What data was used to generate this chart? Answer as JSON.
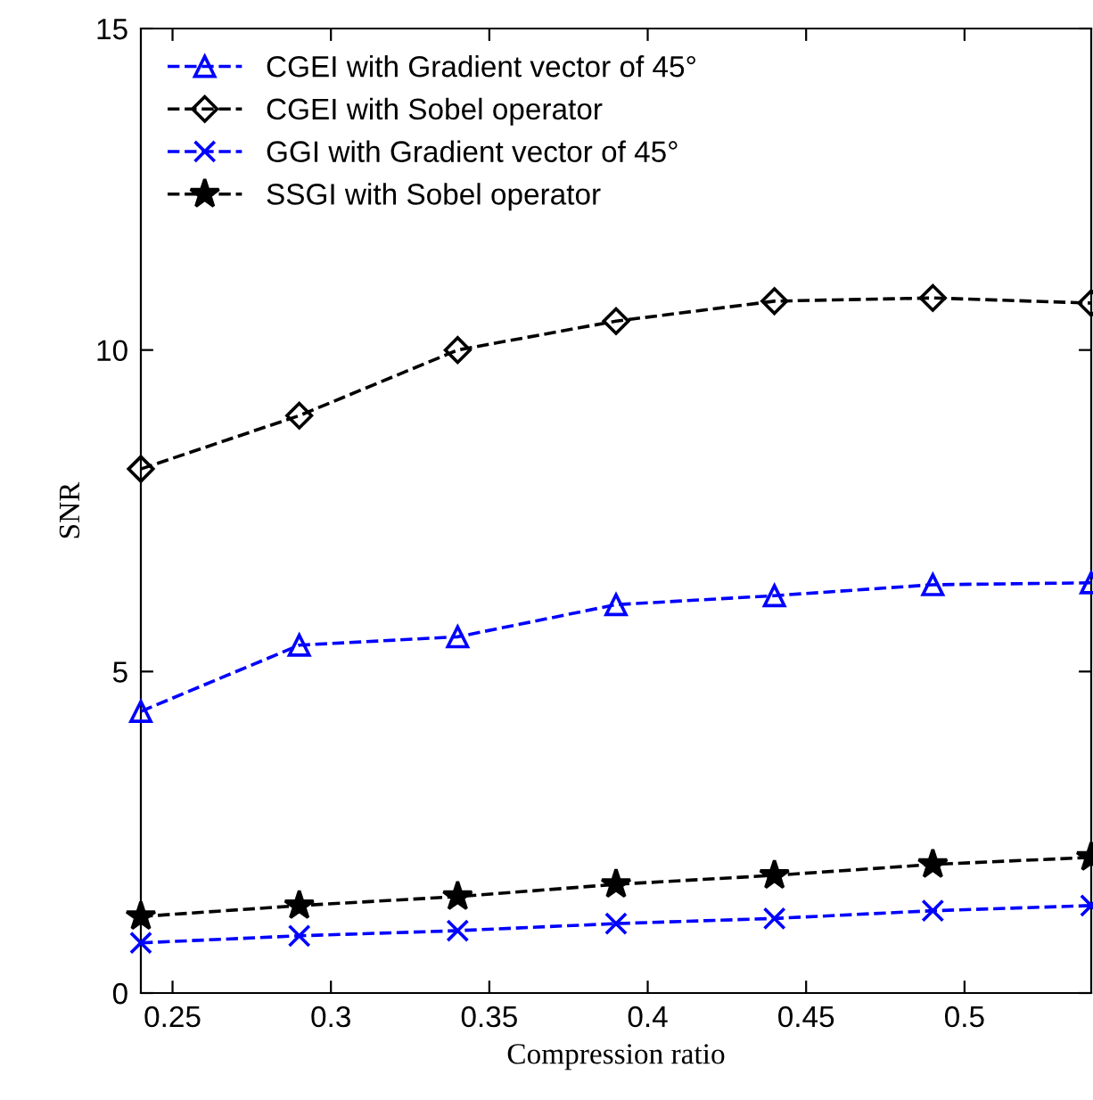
{
  "chart_data": {
    "type": "line",
    "xlabel": "Compression ratio",
    "ylabel": "SNR",
    "x": [
      0.24,
      0.29,
      0.34,
      0.39,
      0.44,
      0.49,
      0.54
    ],
    "series": [
      {
        "name": "CGEI with Gradient vector of 45°",
        "color": "#0000ff",
        "marker": "triangle",
        "line_style": "dashed",
        "values": [
          4.38,
          5.41,
          5.54,
          6.04,
          6.18,
          6.35,
          6.38
        ]
      },
      {
        "name": "CGEI with Sobel operator",
        "color": "#000000",
        "marker": "diamond",
        "line_style": "dashed",
        "values": [
          8.15,
          8.98,
          10.0,
          10.45,
          10.76,
          10.81,
          10.73
        ]
      },
      {
        "name": "GGI with Gradient vector of 45°",
        "color": "#0000ff",
        "marker": "cross",
        "line_style": "dashed",
        "values": [
          0.78,
          0.89,
          0.97,
          1.08,
          1.16,
          1.28,
          1.36
        ]
      },
      {
        "name": "SSGI with Sobel operator",
        "color": "#000000",
        "marker": "star",
        "line_style": "dashed",
        "values": [
          1.19,
          1.36,
          1.5,
          1.69,
          1.83,
          2.0,
          2.11
        ]
      }
    ],
    "xlim": [
      0.24,
      0.54
    ],
    "xticks": [
      {
        "value": 0.25,
        "label": "0.25"
      },
      {
        "value": 0.3,
        "label": "0.3"
      },
      {
        "value": 0.35,
        "label": "0.35"
      },
      {
        "value": 0.4,
        "label": "0.4"
      },
      {
        "value": 0.45,
        "label": "0.45"
      },
      {
        "value": 0.5,
        "label": "0.5"
      }
    ],
    "ylim": [
      0,
      15
    ],
    "yticks": [
      0,
      5,
      10,
      15
    ],
    "grid": false,
    "legend": "top left"
  }
}
